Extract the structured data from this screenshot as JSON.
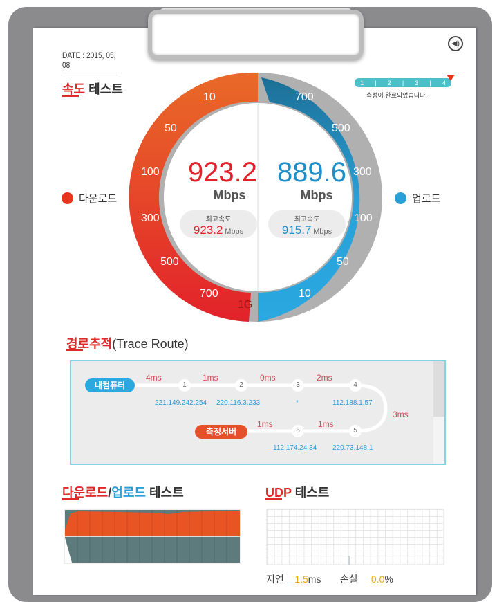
{
  "date": "DATE : 2015, 05, 08",
  "sound_icon": "speaker-icon",
  "speed": {
    "title_red": "속도",
    "title_rest": " 테스트",
    "progress_steps": [
      "1",
      "2",
      "3",
      "4"
    ],
    "progress": 1.0,
    "status": "측정이 완료되었습니다.",
    "download": {
      "legend": "다운로드",
      "value": "923.2",
      "unit": "Mbps",
      "max_label": "최고속도",
      "max_value": "923.2",
      "max_unit": "Mbps",
      "color": "#e8341c"
    },
    "upload": {
      "legend": "업로드",
      "value": "889.6",
      "unit": "Mbps",
      "max_label": "최고속도",
      "max_value": "915.7",
      "max_unit": "Mbps",
      "color": "#2aa0d8"
    },
    "download_ticks": [
      "10",
      "50",
      "100",
      "300",
      "500",
      "700",
      "1G"
    ],
    "upload_ticks": [
      "700",
      "500",
      "300",
      "100",
      "50",
      "10"
    ]
  },
  "trace": {
    "title_red": "경로추적",
    "title_rest": "(Trace Route)",
    "start": "내컴퓨터",
    "end": "측정서버",
    "hops": [
      {
        "n": "1",
        "ip": "221.149.242.254",
        "ms": "4ms"
      },
      {
        "n": "2",
        "ip": "220.116.3.233",
        "ms": "1ms"
      },
      {
        "n": "3",
        "ip": "*",
        "ms": "0ms"
      },
      {
        "n": "4",
        "ip": "112.188.1.57",
        "ms": "2ms"
      },
      {
        "n": "5",
        "ip": "220.73.148.1",
        "ms": "3ms"
      },
      {
        "n": "6",
        "ip": "112.174.24.34",
        "ms": "1ms"
      }
    ],
    "end_ms": "1ms"
  },
  "dlul": {
    "title_red": "다운로드",
    "sep": "/",
    "title_blue": "업로드",
    "title_rest": " 테스트"
  },
  "udp": {
    "title_red": "UDP",
    "title_rest": " 테스트",
    "latency_label": "지연",
    "latency": "1.5",
    "latency_unit": "ms",
    "loss_label": "손실",
    "loss": "0.0",
    "loss_unit": "%"
  }
}
